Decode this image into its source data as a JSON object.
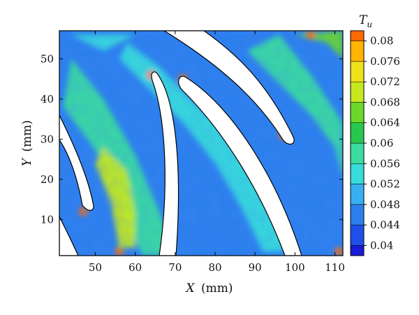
{
  "chart_data": {
    "type": "heatmap",
    "title": "",
    "xlabel": "X (mm)",
    "ylabel": "Y (mm)",
    "xlabel_parts": {
      "var": "X",
      "unit": "(mm)"
    },
    "ylabel_parts": {
      "var": "Y",
      "unit": "(mm)"
    },
    "xlim": [
      41,
      112
    ],
    "ylim": [
      1,
      57
    ],
    "x_ticks": [
      50,
      60,
      70,
      80,
      90,
      100,
      110
    ],
    "y_ticks": [
      10,
      20,
      30,
      40,
      50
    ],
    "grid": false,
    "colorbar": {
      "title": "T",
      "title_subscript": "u",
      "placement": "right",
      "range": [
        0.038,
        0.082
      ],
      "levels": [
        0.04,
        0.044,
        0.048,
        0.052,
        0.056,
        0.06,
        0.064,
        0.068,
        0.072,
        0.076,
        0.08
      ],
      "tick_labels": [
        "0.04",
        "0.044",
        "0.048",
        "0.052",
        "0.056",
        "0.06",
        "0.064",
        "0.068",
        "0.072",
        "0.076",
        "0.08"
      ],
      "colors": [
        "#1a1ad9",
        "#1f4fe8",
        "#2e7fee",
        "#37b0f2",
        "#37dcdc",
        "#3cdca0",
        "#28c850",
        "#6cd82a",
        "#c6e81e",
        "#f0e21a",
        "#ffb400",
        "#ff6a00",
        "#e81c0c"
      ]
    },
    "field_description_values": {
      "background_level": 0.044,
      "wake_bands_level": 0.056,
      "hot_spots_level": 0.08
    }
  }
}
